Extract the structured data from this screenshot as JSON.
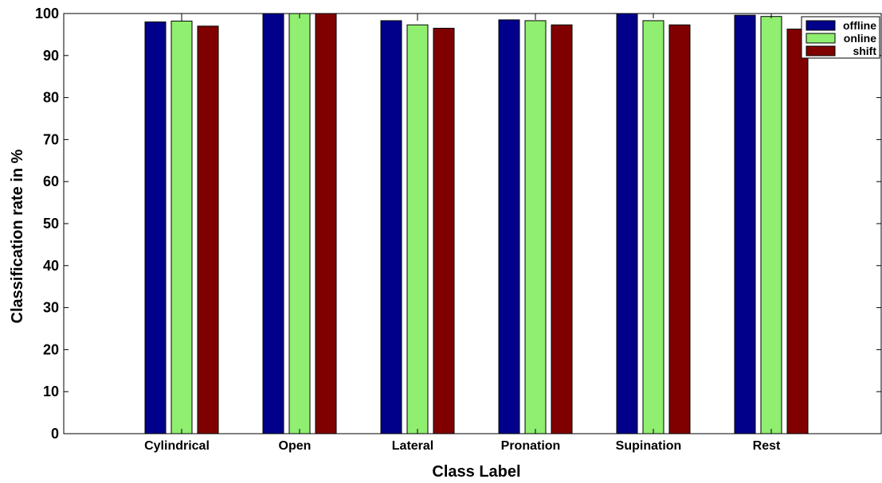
{
  "chart_data": {
    "type": "bar",
    "xlabel": "Class Label",
    "ylabel": "Classification rate in %",
    "ylim": [
      0,
      100
    ],
    "yticks": [
      0,
      10,
      20,
      30,
      40,
      50,
      60,
      70,
      80,
      90,
      100
    ],
    "grid": false,
    "legend_position": "top-right",
    "categories": [
      "Cylindrical",
      "Open",
      "Lateral",
      "Pronation",
      "Supination",
      "Rest"
    ],
    "series": [
      {
        "name": "offline",
        "color": "#00008B",
        "values": [
          98.0,
          100.0,
          98.3,
          98.5,
          100.0,
          99.6
        ]
      },
      {
        "name": "online",
        "color": "#90EE70",
        "values": [
          98.2,
          100.0,
          97.3,
          98.3,
          98.3,
          99.3
        ]
      },
      {
        "name": "shift",
        "color": "#800000",
        "values": [
          97.0,
          100.0,
          96.5,
          97.3,
          97.3,
          96.3
        ]
      }
    ]
  }
}
